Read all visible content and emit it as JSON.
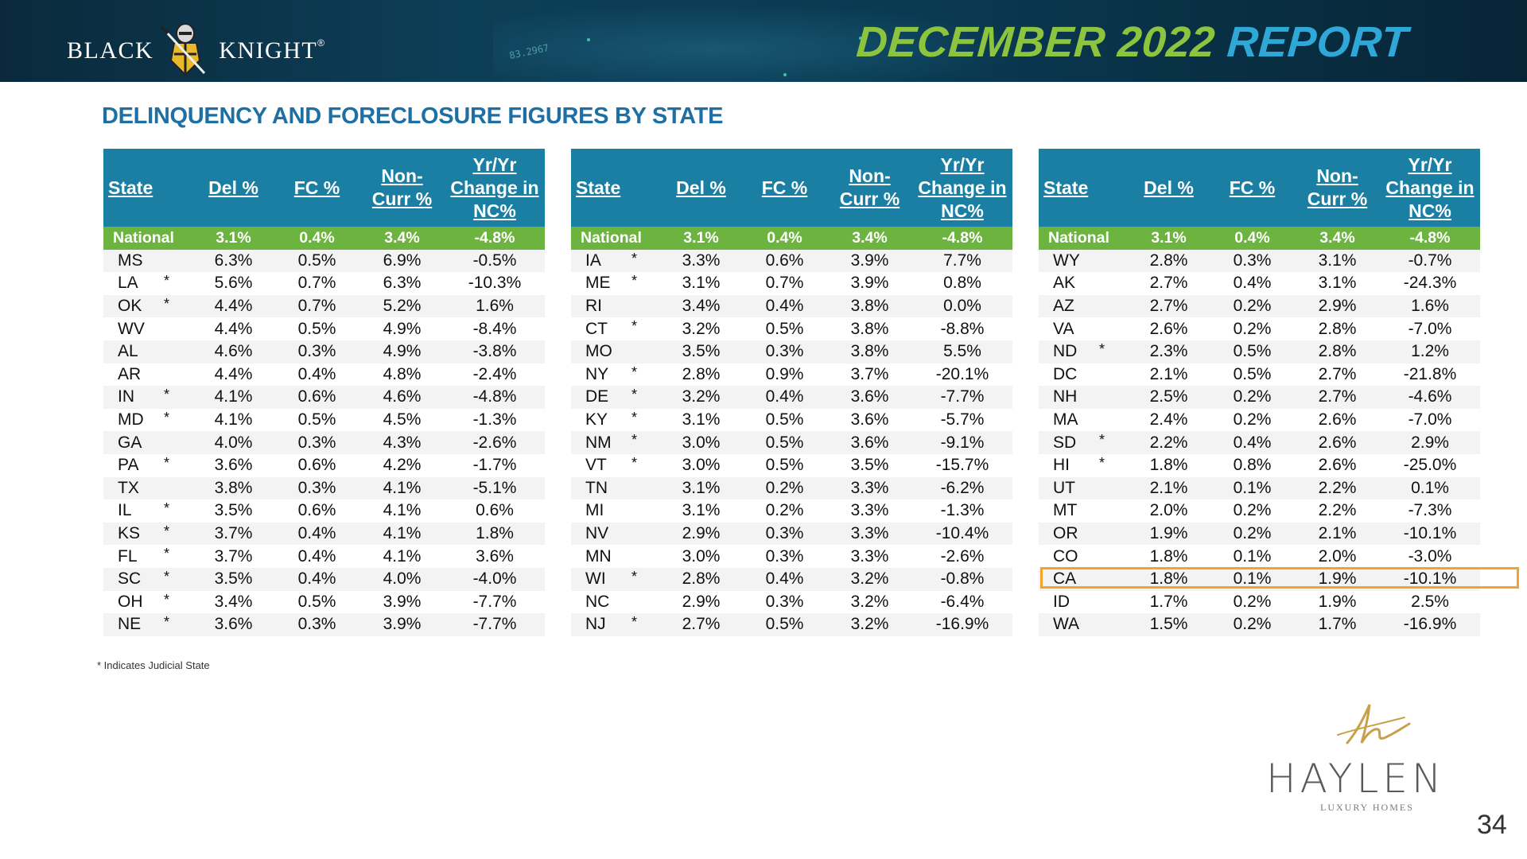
{
  "header": {
    "logo_left": "BLACK",
    "logo_right": "KNIGHT",
    "logo_tm": "®",
    "title_part1": "DECEMBER 2022",
    "title_part2": "REPORT",
    "stream_text": "83.2967"
  },
  "section_title": "DELINQUENCY AND FORECLOSURE FIGURES BY STATE",
  "columns": {
    "state": "State",
    "del": "Del %",
    "fc": "FC %",
    "noncurr": [
      "Non-",
      "Curr %"
    ],
    "yr": [
      "Yr/Yr",
      "Change in",
      "NC%"
    ]
  },
  "tables": [
    {
      "national": {
        "state": "National",
        "del": "3.1%",
        "fc": "0.4%",
        "noncurr": "3.4%",
        "yr": "-4.8%"
      },
      "rows": [
        {
          "state": "MS",
          "judicial": "",
          "del": "6.3%",
          "fc": "0.5%",
          "noncurr": "6.9%",
          "yr": "-0.5%"
        },
        {
          "state": "LA",
          "judicial": "*",
          "del": "5.6%",
          "fc": "0.7%",
          "noncurr": "6.3%",
          "yr": "-10.3%"
        },
        {
          "state": "OK",
          "judicial": "*",
          "del": "4.4%",
          "fc": "0.7%",
          "noncurr": "5.2%",
          "yr": "1.6%"
        },
        {
          "state": "WV",
          "judicial": "",
          "del": "4.4%",
          "fc": "0.5%",
          "noncurr": "4.9%",
          "yr": "-8.4%"
        },
        {
          "state": "AL",
          "judicial": "",
          "del": "4.6%",
          "fc": "0.3%",
          "noncurr": "4.9%",
          "yr": "-3.8%"
        },
        {
          "state": "AR",
          "judicial": "",
          "del": "4.4%",
          "fc": "0.4%",
          "noncurr": "4.8%",
          "yr": "-2.4%"
        },
        {
          "state": "IN",
          "judicial": "*",
          "del": "4.1%",
          "fc": "0.6%",
          "noncurr": "4.6%",
          "yr": "-4.8%"
        },
        {
          "state": "MD",
          "judicial": "*",
          "del": "4.1%",
          "fc": "0.5%",
          "noncurr": "4.5%",
          "yr": "-1.3%"
        },
        {
          "state": "GA",
          "judicial": "",
          "del": "4.0%",
          "fc": "0.3%",
          "noncurr": "4.3%",
          "yr": "-2.6%"
        },
        {
          "state": "PA",
          "judicial": "*",
          "del": "3.6%",
          "fc": "0.6%",
          "noncurr": "4.2%",
          "yr": "-1.7%"
        },
        {
          "state": "TX",
          "judicial": "",
          "del": "3.8%",
          "fc": "0.3%",
          "noncurr": "4.1%",
          "yr": "-5.1%"
        },
        {
          "state": "IL",
          "judicial": "*",
          "del": "3.5%",
          "fc": "0.6%",
          "noncurr": "4.1%",
          "yr": "0.6%"
        },
        {
          "state": "KS",
          "judicial": "*",
          "del": "3.7%",
          "fc": "0.4%",
          "noncurr": "4.1%",
          "yr": "1.8%"
        },
        {
          "state": "FL",
          "judicial": "*",
          "del": "3.7%",
          "fc": "0.4%",
          "noncurr": "4.1%",
          "yr": "3.6%"
        },
        {
          "state": "SC",
          "judicial": "*",
          "del": "3.5%",
          "fc": "0.4%",
          "noncurr": "4.0%",
          "yr": "-4.0%"
        },
        {
          "state": "OH",
          "judicial": "*",
          "del": "3.4%",
          "fc": "0.5%",
          "noncurr": "3.9%",
          "yr": "-7.7%"
        },
        {
          "state": "NE",
          "judicial": "*",
          "del": "3.6%",
          "fc": "0.3%",
          "noncurr": "3.9%",
          "yr": "-7.7%"
        }
      ]
    },
    {
      "national": {
        "state": "National",
        "del": "3.1%",
        "fc": "0.4%",
        "noncurr": "3.4%",
        "yr": "-4.8%"
      },
      "rows": [
        {
          "state": "IA",
          "judicial": "*",
          "del": "3.3%",
          "fc": "0.6%",
          "noncurr": "3.9%",
          "yr": "7.7%"
        },
        {
          "state": "ME",
          "judicial": "*",
          "del": "3.1%",
          "fc": "0.7%",
          "noncurr": "3.9%",
          "yr": "0.8%"
        },
        {
          "state": "RI",
          "judicial": "",
          "del": "3.4%",
          "fc": "0.4%",
          "noncurr": "3.8%",
          "yr": "0.0%"
        },
        {
          "state": "CT",
          "judicial": "*",
          "del": "3.2%",
          "fc": "0.5%",
          "noncurr": "3.8%",
          "yr": "-8.8%"
        },
        {
          "state": "MO",
          "judicial": "",
          "del": "3.5%",
          "fc": "0.3%",
          "noncurr": "3.8%",
          "yr": "5.5%"
        },
        {
          "state": "NY",
          "judicial": "*",
          "del": "2.8%",
          "fc": "0.9%",
          "noncurr": "3.7%",
          "yr": "-20.1%"
        },
        {
          "state": "DE",
          "judicial": "*",
          "del": "3.2%",
          "fc": "0.4%",
          "noncurr": "3.6%",
          "yr": "-7.7%"
        },
        {
          "state": "KY",
          "judicial": "*",
          "del": "3.1%",
          "fc": "0.5%",
          "noncurr": "3.6%",
          "yr": "-5.7%"
        },
        {
          "state": "NM",
          "judicial": "*",
          "del": "3.0%",
          "fc": "0.5%",
          "noncurr": "3.6%",
          "yr": "-9.1%"
        },
        {
          "state": "VT",
          "judicial": "*",
          "del": "3.0%",
          "fc": "0.5%",
          "noncurr": "3.5%",
          "yr": "-15.7%"
        },
        {
          "state": "TN",
          "judicial": "",
          "del": "3.1%",
          "fc": "0.2%",
          "noncurr": "3.3%",
          "yr": "-6.2%"
        },
        {
          "state": "MI",
          "judicial": "",
          "del": "3.1%",
          "fc": "0.2%",
          "noncurr": "3.3%",
          "yr": "-1.3%"
        },
        {
          "state": "NV",
          "judicial": "",
          "del": "2.9%",
          "fc": "0.3%",
          "noncurr": "3.3%",
          "yr": "-10.4%"
        },
        {
          "state": "MN",
          "judicial": "",
          "del": "3.0%",
          "fc": "0.3%",
          "noncurr": "3.3%",
          "yr": "-2.6%"
        },
        {
          "state": "WI",
          "judicial": "*",
          "del": "2.8%",
          "fc": "0.4%",
          "noncurr": "3.2%",
          "yr": "-0.8%"
        },
        {
          "state": "NC",
          "judicial": "",
          "del": "2.9%",
          "fc": "0.3%",
          "noncurr": "3.2%",
          "yr": "-6.4%"
        },
        {
          "state": "NJ",
          "judicial": "*",
          "del": "2.7%",
          "fc": "0.5%",
          "noncurr": "3.2%",
          "yr": "-16.9%"
        }
      ]
    },
    {
      "national": {
        "state": "National",
        "del": "3.1%",
        "fc": "0.4%",
        "noncurr": "3.4%",
        "yr": "-4.8%"
      },
      "rows": [
        {
          "state": "WY",
          "judicial": "",
          "del": "2.8%",
          "fc": "0.3%",
          "noncurr": "3.1%",
          "yr": "-0.7%"
        },
        {
          "state": "AK",
          "judicial": "",
          "del": "2.7%",
          "fc": "0.4%",
          "noncurr": "3.1%",
          "yr": "-24.3%"
        },
        {
          "state": "AZ",
          "judicial": "",
          "del": "2.7%",
          "fc": "0.2%",
          "noncurr": "2.9%",
          "yr": "1.6%"
        },
        {
          "state": "VA",
          "judicial": "",
          "del": "2.6%",
          "fc": "0.2%",
          "noncurr": "2.8%",
          "yr": "-7.0%"
        },
        {
          "state": "ND",
          "judicial": "*",
          "del": "2.3%",
          "fc": "0.5%",
          "noncurr": "2.8%",
          "yr": "1.2%"
        },
        {
          "state": "DC",
          "judicial": "",
          "del": "2.1%",
          "fc": "0.5%",
          "noncurr": "2.7%",
          "yr": "-21.8%"
        },
        {
          "state": "NH",
          "judicial": "",
          "del": "2.5%",
          "fc": "0.2%",
          "noncurr": "2.7%",
          "yr": "-4.6%"
        },
        {
          "state": "MA",
          "judicial": "",
          "del": "2.4%",
          "fc": "0.2%",
          "noncurr": "2.6%",
          "yr": "-7.0%"
        },
        {
          "state": "SD",
          "judicial": "*",
          "del": "2.2%",
          "fc": "0.4%",
          "noncurr": "2.6%",
          "yr": "2.9%"
        },
        {
          "state": "HI",
          "judicial": "*",
          "del": "1.8%",
          "fc": "0.8%",
          "noncurr": "2.6%",
          "yr": "-25.0%"
        },
        {
          "state": "UT",
          "judicial": "",
          "del": "2.1%",
          "fc": "0.1%",
          "noncurr": "2.2%",
          "yr": "0.1%"
        },
        {
          "state": "MT",
          "judicial": "",
          "del": "2.0%",
          "fc": "0.2%",
          "noncurr": "2.2%",
          "yr": "-7.3%"
        },
        {
          "state": "OR",
          "judicial": "",
          "del": "1.9%",
          "fc": "0.2%",
          "noncurr": "2.1%",
          "yr": "-10.1%"
        },
        {
          "state": "CO",
          "judicial": "",
          "del": "1.8%",
          "fc": "0.1%",
          "noncurr": "2.0%",
          "yr": "-3.0%"
        },
        {
          "state": "CA",
          "judicial": "",
          "del": "1.8%",
          "fc": "0.1%",
          "noncurr": "1.9%",
          "yr": "-10.1%"
        },
        {
          "state": "ID",
          "judicial": "",
          "del": "1.7%",
          "fc": "0.2%",
          "noncurr": "1.9%",
          "yr": "2.5%"
        },
        {
          "state": "WA",
          "judicial": "",
          "del": "1.5%",
          "fc": "0.2%",
          "noncurr": "1.7%",
          "yr": "-16.9%"
        }
      ]
    }
  ],
  "highlighted_state": "CA",
  "footnote": "* Indicates Judicial State",
  "brand": {
    "name": "HAYLEN",
    "tagline": "LUXURY HOMES"
  },
  "page_number": "34",
  "colors": {
    "header_bg": "#0d3e57",
    "title_green": "#8cc43f",
    "title_blue": "#2fa8d8",
    "section_title": "#1e6fa3",
    "table_header": "#1a7fa3",
    "national_row": "#6db33f",
    "highlight": "#f2a32c"
  }
}
